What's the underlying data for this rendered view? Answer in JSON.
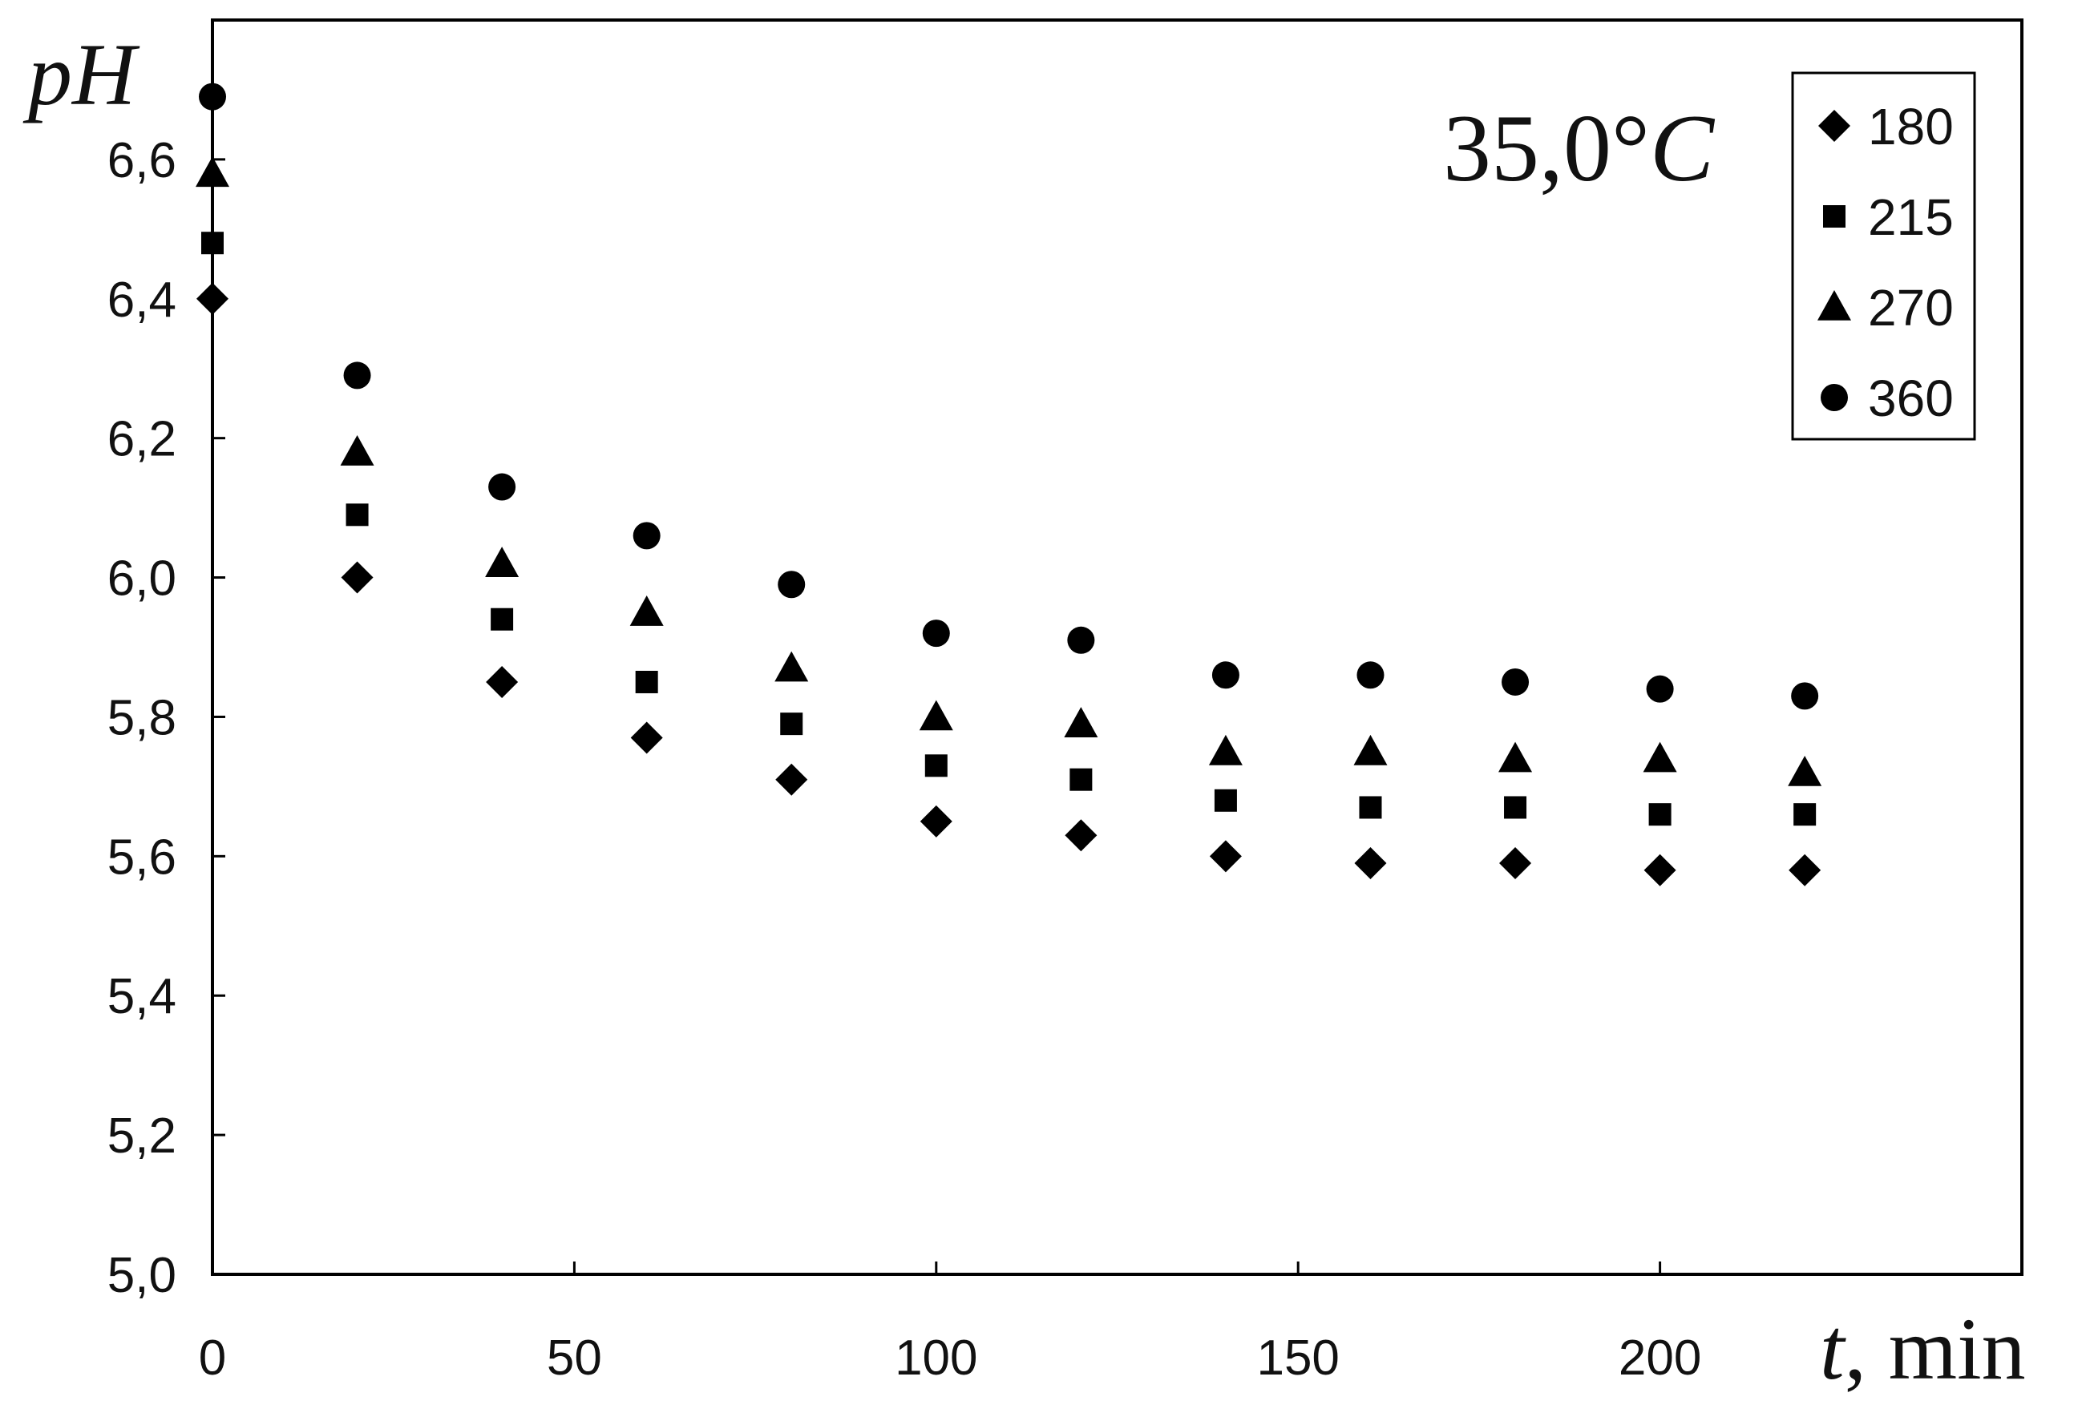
{
  "chart_data": {
    "type": "scatter",
    "title": "35,0°C",
    "title_parts": {
      "number": "35,0°",
      "unit": "C"
    },
    "xlabel": "t, min",
    "xlabel_parts": {
      "var": "t",
      "unit": ", min"
    },
    "ylabel": "pH",
    "xlim": [
      0,
      250
    ],
    "ylim": [
      5.0,
      6.8
    ],
    "x_ticks": [
      0,
      50,
      100,
      150,
      200,
      250
    ],
    "x_tick_labels": [
      "0",
      "50",
      "100",
      "150",
      "200"
    ],
    "y_ticks": [
      5.0,
      5.2,
      5.4,
      5.6,
      5.8,
      6.0,
      6.2,
      6.4,
      6.6
    ],
    "y_tick_labels": [
      "5,0",
      "5,2",
      "5,4",
      "5,6",
      "5,8",
      "6,0",
      "6,2",
      "6,4",
      "6,6"
    ],
    "grid": false,
    "legend_position": "top-right",
    "x": [
      0,
      20,
      40,
      60,
      80,
      100,
      120,
      140,
      160,
      180,
      200,
      220
    ],
    "series": [
      {
        "name": "180",
        "marker": "diamond",
        "values": [
          6.4,
          6.0,
          5.85,
          5.77,
          5.71,
          5.65,
          5.63,
          5.6,
          5.59,
          5.59,
          5.58,
          5.58
        ]
      },
      {
        "name": "215",
        "marker": "square",
        "values": [
          6.48,
          6.09,
          5.94,
          5.85,
          5.79,
          5.73,
          5.71,
          5.68,
          5.67,
          5.67,
          5.66,
          5.66
        ]
      },
      {
        "name": "270",
        "marker": "triangle",
        "values": [
          6.58,
          6.18,
          6.02,
          5.95,
          5.87,
          5.8,
          5.79,
          5.75,
          5.75,
          5.74,
          5.74,
          5.72
        ]
      },
      {
        "name": "360",
        "marker": "circle",
        "values": [
          6.69,
          6.29,
          6.13,
          6.06,
          5.99,
          5.92,
          5.91,
          5.86,
          5.86,
          5.85,
          5.84,
          5.83
        ]
      }
    ],
    "colors": {
      "marker": "#000000",
      "axes": "#000000"
    }
  }
}
